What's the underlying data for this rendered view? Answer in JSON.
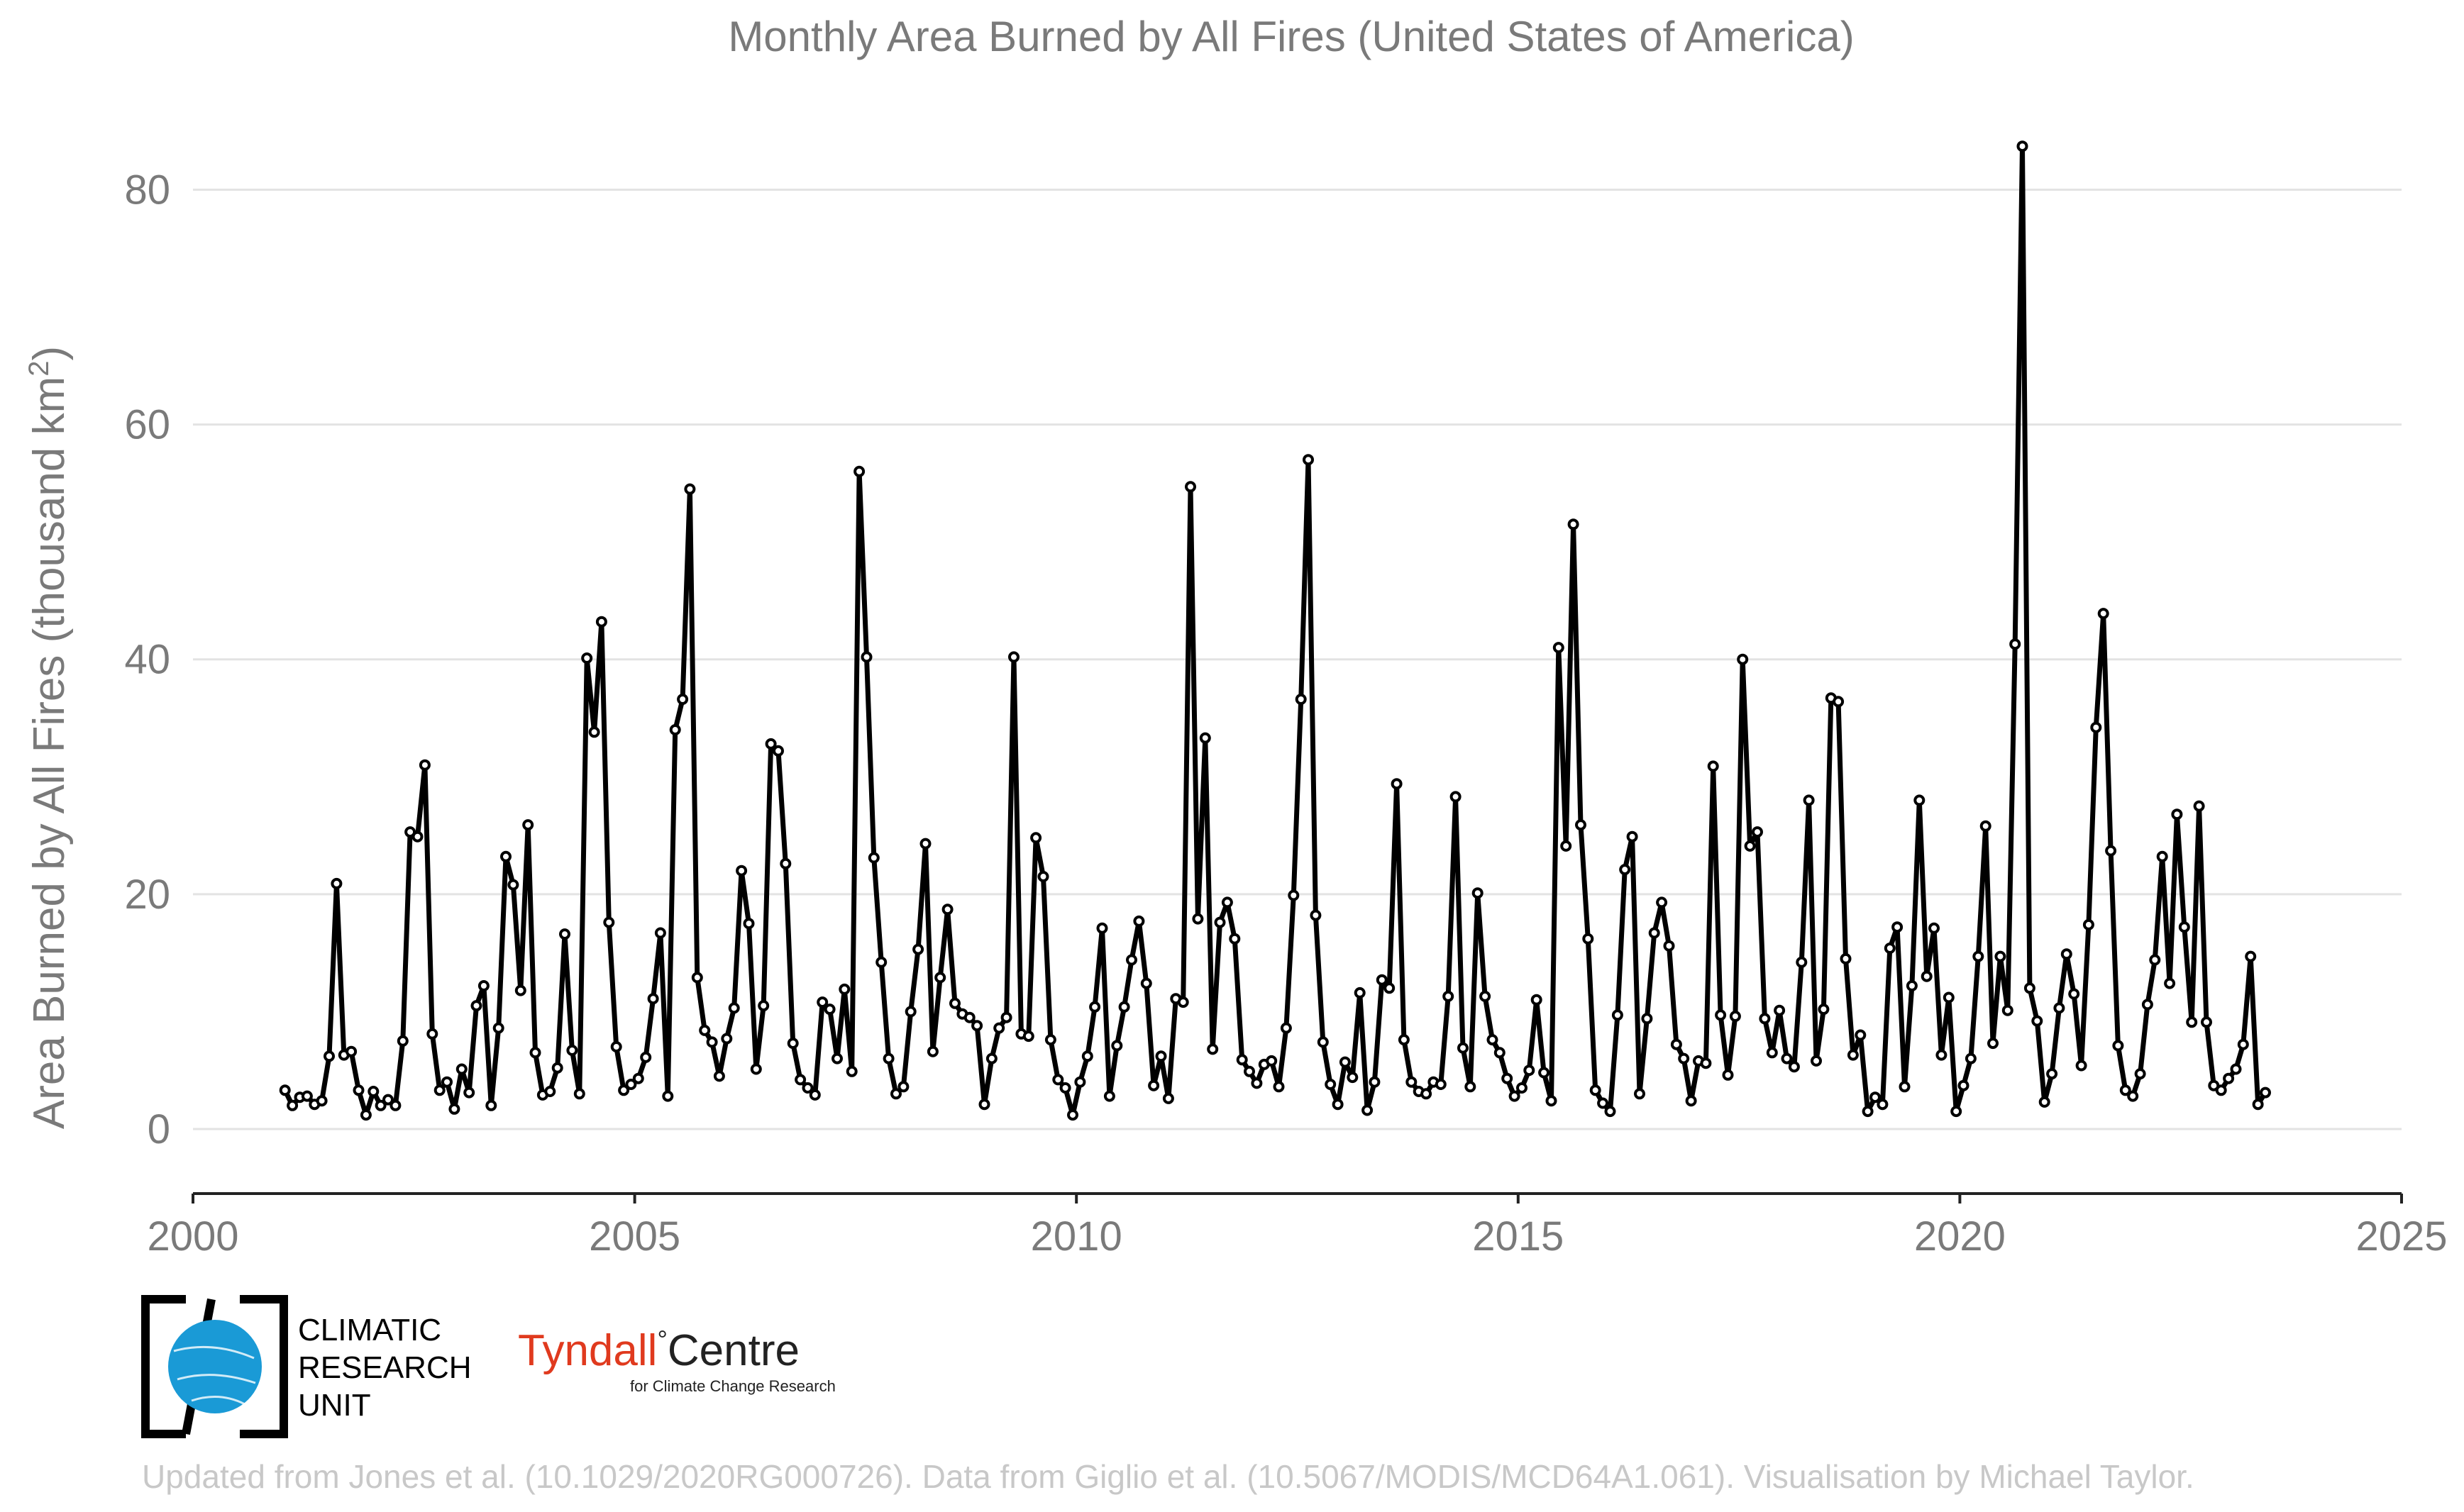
{
  "chart_data": {
    "type": "line",
    "title": "Monthly Area Burned by All Fires (United States of America)",
    "ylabel": "Area Burned by All Fires (thousand km",
    "ylabel_superscript": "2",
    "ylabel_close": ")",
    "xlabel": "",
    "xlim": [
      2000,
      2025
    ],
    "ylim": [
      -5.5,
      88
    ],
    "xticks": [
      2000,
      2005,
      2010,
      2015,
      2020,
      2025
    ],
    "yticks": [
      0,
      20,
      40,
      60,
      80
    ],
    "grid": true,
    "start": 2001.042,
    "step": 0.08333,
    "series": [
      {
        "color": "#000000",
        "values": [
          3.3,
          2.0,
          2.7,
          2.8,
          2.1,
          2.4,
          6.2,
          20.9,
          6.3,
          6.6,
          3.3,
          1.2,
          3.2,
          2.0,
          2.5,
          2.0,
          7.5,
          25.3,
          24.9,
          31.0,
          8.1,
          3.3,
          4.0,
          1.7,
          5.1,
          3.1,
          10.5,
          12.2,
          2.0,
          8.6,
          23.2,
          20.8,
          11.8,
          25.9,
          6.5,
          2.9,
          3.2,
          5.2,
          16.6,
          6.7,
          3.0,
          40.1,
          33.8,
          43.2,
          17.6,
          7.0,
          3.3,
          3.8,
          4.3,
          6.1,
          11.1,
          16.7,
          2.8,
          34.0,
          36.6,
          54.5,
          12.9,
          8.4,
          7.4,
          4.5,
          7.7,
          10.3,
          22.0,
          17.5,
          5.1,
          10.5,
          32.8,
          32.2,
          22.6,
          7.3,
          4.2,
          3.5,
          2.9,
          10.8,
          10.2,
          6.0,
          11.9,
          4.9,
          56.0,
          40.2,
          23.1,
          14.2,
          6.0,
          3.0,
          3.6,
          10.0,
          15.3,
          24.3,
          6.6,
          12.9,
          18.7,
          10.7,
          9.8,
          9.5,
          8.8,
          2.1,
          6.0,
          8.6,
          9.5,
          40.2,
          8.1,
          7.9,
          24.8,
          21.5,
          7.6,
          4.2,
          3.5,
          1.2,
          4.0,
          6.2,
          10.4,
          17.1,
          2.8,
          7.1,
          10.4,
          14.4,
          17.7,
          12.4,
          3.7,
          6.2,
          2.6,
          11.1,
          10.8,
          54.7,
          17.9,
          33.3,
          6.8,
          17.6,
          19.3,
          16.2,
          5.9,
          4.9,
          3.9,
          5.5,
          5.8,
          3.6,
          8.6,
          19.9,
          36.6,
          57.0,
          18.2,
          7.4,
          3.8,
          2.1,
          5.7,
          4.4,
          11.6,
          1.6,
          4.0,
          12.7,
          12.0,
          29.4,
          7.6,
          4.0,
          3.2,
          3.0,
          4.0,
          3.8,
          11.3,
          28.3,
          6.9,
          3.6,
          20.1,
          11.3,
          7.6,
          6.5,
          4.3,
          2.8,
          3.5,
          5.0,
          11.0,
          4.8,
          2.4,
          41.0,
          24.1,
          51.5,
          25.9,
          16.2,
          3.3,
          2.2,
          1.5,
          9.7,
          22.1,
          24.9,
          3.0,
          9.4,
          16.7,
          19.3,
          15.6,
          7.2,
          6.0,
          2.4,
          5.8,
          5.6,
          30.9,
          9.7,
          4.6,
          9.6,
          40.0,
          24.1,
          25.3,
          9.4,
          6.5,
          10.1,
          6.0,
          5.3,
          14.2,
          28.0,
          5.8,
          10.2,
          36.7,
          36.4,
          14.5,
          6.3,
          8.0,
          1.5,
          2.7,
          2.1,
          15.4,
          17.2,
          3.6,
          12.2,
          28.0,
          13.0,
          17.1,
          6.3,
          11.2,
          1.5,
          3.7,
          6.0,
          14.7,
          25.8,
          7.3,
          14.7,
          10.1,
          41.3,
          83.7,
          12.0,
          9.2,
          2.3,
          4.7,
          10.3,
          14.9,
          11.5,
          5.4,
          17.4,
          34.2,
          43.9,
          23.7,
          7.1,
          3.3,
          2.8,
          4.7,
          10.6,
          14.4,
          23.2,
          12.4,
          26.8,
          17.2,
          9.1,
          27.5,
          9.1,
          3.7,
          3.3,
          4.3,
          5.1,
          7.2,
          14.7,
          2.1,
          3.1
        ]
      }
    ]
  },
  "logos": {
    "cru_lines": [
      "CLIMATIC",
      "RESEARCH",
      "UNIT"
    ],
    "tyndall_red": "Tyndall",
    "tyndall_degree": "°",
    "tyndall_dark": "Centre",
    "tyndall_sub": "for Climate Change Research",
    "cru_color": "#1a9ad6",
    "tyndall_color": "#e03a1e"
  },
  "credit": "Updated from Jones et al. (10.1029/2020RG000726). Data from Giglio et al. (10.5067/MODIS/MCD64A1.061). Visualisation by Michael Taylor."
}
